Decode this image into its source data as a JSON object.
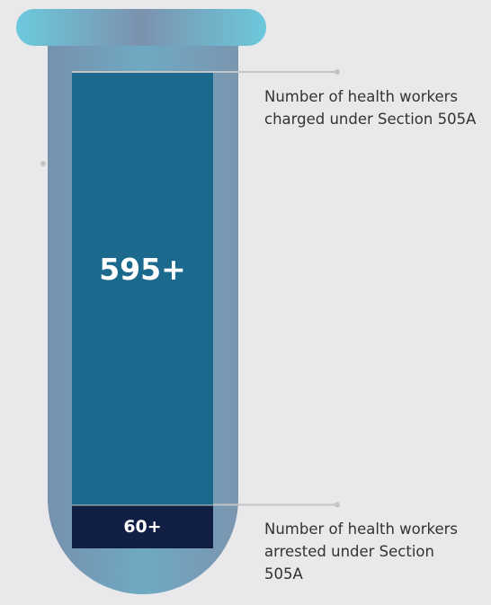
{
  "chart_data": {
    "type": "stacked-bar",
    "series": [
      {
        "name": "Number of health workers charged under Section 505A",
        "color": "#1b6a8e",
        "values": [
          595
        ],
        "value_labels": [
          "595+"
        ]
      },
      {
        "name": "Number of health workers arrested under Section 505A",
        "color": "#121f45",
        "values": [
          60
        ],
        "value_labels": [
          "60+"
        ]
      }
    ]
  }
}
